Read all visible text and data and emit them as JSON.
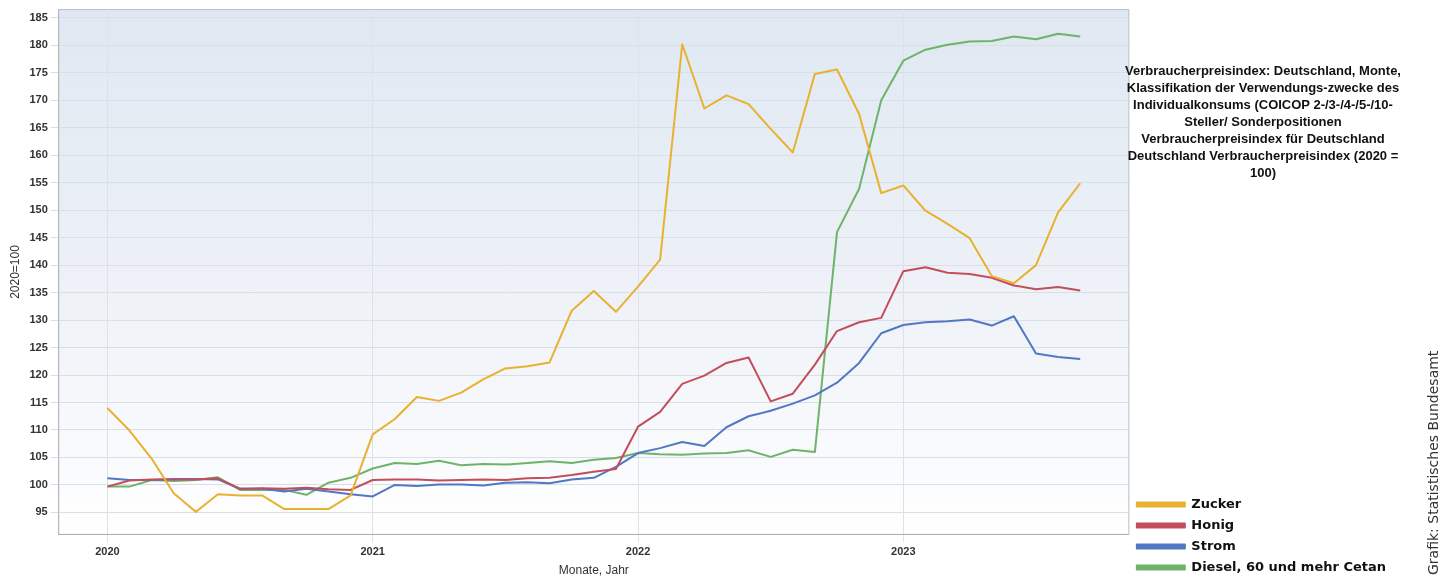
{
  "chart_data": {
    "type": "line",
    "title": "Verbraucherpreisindex: Deutschland, Monte, Klassifikation der Verwendungs-zwecke des Individualkonsums (COICOP 2-/3-/4-/5-/10-Steller/ Sonderpositionen Verbraucherpreisindex für Deutschland Deutschland Verbraucherpreisindex (2020 = 100)",
    "xlabel": "Monate, Jahr",
    "ylabel": "2020=100",
    "x": [
      "2020-01",
      "2020-02",
      "2020-03",
      "2020-04",
      "2020-05",
      "2020-06",
      "2020-07",
      "2020-08",
      "2020-09",
      "2020-10",
      "2020-11",
      "2020-12",
      "2021-01",
      "2021-02",
      "2021-03",
      "2021-04",
      "2021-05",
      "2021-06",
      "2021-07",
      "2021-08",
      "2021-09",
      "2021-10",
      "2021-11",
      "2021-12",
      "2022-01",
      "2022-02",
      "2022-03",
      "2022-04",
      "2022-05",
      "2022-06",
      "2022-07",
      "2022-08",
      "2022-09",
      "2022-10",
      "2022-11",
      "2022-12",
      "2023-01",
      "2023-02",
      "2023-03",
      "2023-04",
      "2023-05",
      "2023-06",
      "2023-07",
      "2023-08",
      "2023-09"
    ],
    "series": [
      {
        "name": "Zucker",
        "color": "#e8b130",
        "values": [
          114.0,
          109.9,
          104.8,
          98.5,
          95.1,
          98.3,
          98.1,
          98.1,
          95.6,
          95.6,
          95.6,
          98.1,
          109.2,
          112.0,
          116.0,
          115.3,
          116.8,
          119.2,
          121.2,
          121.6,
          122.3,
          131.7,
          135.3,
          131.5,
          136.1,
          141.0,
          180.2,
          168.5,
          170.9,
          169.3,
          164.8,
          160.5,
          174.8,
          175.6,
          167.5,
          153.1,
          154.5,
          149.9,
          147.5,
          144.9,
          138.0,
          136.7,
          140.0,
          149.6,
          154.9
        ]
      },
      {
        "name": "Honig",
        "color": "#c24e5c",
        "values": [
          99.7,
          100.8,
          101.0,
          101.0,
          101.0,
          101.2,
          99.3,
          99.4,
          99.3,
          99.5,
          99.2,
          99.1,
          100.9,
          101.0,
          101.0,
          100.8,
          100.9,
          101.0,
          100.9,
          101.2,
          101.3,
          101.8,
          102.4,
          102.9,
          110.6,
          113.3,
          118.4,
          119.9,
          122.2,
          123.2,
          115.2,
          116.6,
          121.9,
          128.0,
          129.6,
          130.4,
          138.9,
          139.6,
          138.6,
          138.4,
          137.7,
          136.3,
          135.6,
          136.0,
          135.4
        ]
      },
      {
        "name": "Strom",
        "color": "#5277c3",
        "values": [
          101.2,
          100.9,
          100.9,
          101.1,
          101.1,
          101.0,
          99.3,
          99.3,
          98.8,
          99.3,
          98.8,
          98.3,
          97.9,
          100.0,
          99.8,
          100.1,
          100.1,
          99.9,
          100.4,
          100.5,
          100.3,
          101.0,
          101.3,
          103.3,
          105.8,
          106.7,
          107.8,
          107.1,
          110.5,
          112.5,
          113.5,
          114.8,
          116.3,
          118.6,
          122.2,
          127.6,
          129.1,
          129.6,
          129.8,
          130.1,
          129.0,
          130.7,
          123.9,
          123.3,
          122.9
        ]
      },
      {
        "name": "Diesel, 60 und mehr Cetan",
        "color": "#6fb36a",
        "values": [
          99.7,
          99.7,
          100.9,
          100.7,
          100.9,
          101.4,
          99.1,
          null,
          99.1,
          98.2,
          100.4,
          101.3,
          103.0,
          104.0,
          103.8,
          104.4,
          103.6,
          103.8,
          103.7,
          104.0,
          104.3,
          104.0,
          104.6,
          104.9,
          105.8,
          105.6,
          105.5,
          105.7,
          105.8,
          106.3,
          105.1,
          106.4,
          106.0,
          146.0,
          153.9,
          170.0,
          177.2,
          179.2,
          180.1,
          180.7,
          180.8,
          181.6,
          181.1,
          182.1,
          181.6
        ]
      }
    ],
    "xlim": [
      "2019-10-25",
      "2023-11-07"
    ],
    "xticks": [
      "2020",
      "2021",
      "2022",
      "2023"
    ],
    "ylim": [
      91,
      186.5
    ],
    "yticks": [
      95,
      100,
      105,
      110,
      115,
      120,
      125,
      130,
      135,
      140,
      145,
      150,
      155,
      160,
      165,
      170,
      175,
      180,
      185
    ],
    "grid": true,
    "legend": "bottom right",
    "marker": "none",
    "line_style": "solid",
    "annotations": [
      "Grafik: Statistisches Bundesamt"
    ]
  }
}
